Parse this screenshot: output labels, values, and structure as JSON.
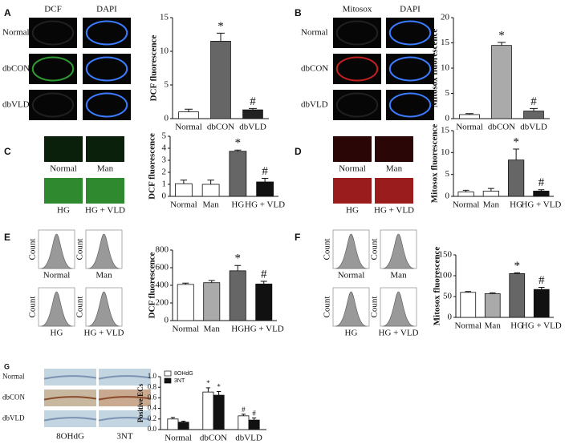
{
  "chart_data": [
    {
      "type": "bar",
      "panel": "A",
      "column_labels": [
        "DCF",
        "DAPI"
      ],
      "row_labels": [
        "Normal",
        "dbCON",
        "dbVLD"
      ],
      "y_label": "DCF fluorescence",
      "categories": [
        "Normal",
        "dbCON",
        "dbVLD"
      ],
      "values": [
        1.0,
        11.5,
        1.3
      ],
      "errors": [
        0.4,
        1.2,
        0.2
      ],
      "colors": [
        "#ffffff",
        "#666666",
        "#222222"
      ],
      "markers": [
        null,
        "*",
        "#"
      ],
      "ylim": [
        0,
        15
      ],
      "yticks": [
        0,
        5,
        10,
        15
      ]
    },
    {
      "type": "bar",
      "panel": "B",
      "column_labels": [
        "Mitosox",
        "DAPI"
      ],
      "row_labels": [
        "Normal",
        "dbCON",
        "dbVLD"
      ],
      "y_label": "Mitosox fluorescence",
      "categories": [
        "Normal",
        "dbCON",
        "dbVLD"
      ],
      "values": [
        0.8,
        14.5,
        1.5
      ],
      "errors": [
        0.2,
        0.6,
        0.5
      ],
      "colors": [
        "#ffffff",
        "#aaaaaa",
        "#666666"
      ],
      "markers": [
        null,
        "*",
        "#"
      ],
      "ylim": [
        0,
        20
      ],
      "yticks": [
        0,
        5,
        10,
        15,
        20
      ]
    },
    {
      "type": "bar",
      "panel": "C",
      "image_labels": [
        "Normal",
        "Man",
        "HG",
        "HG + VLD"
      ],
      "y_label": "DCF fluorescence",
      "categories": [
        "Normal",
        "Man",
        "HG",
        "HG + VLD"
      ],
      "values": [
        1.05,
        1.0,
        3.75,
        1.2
      ],
      "errors": [
        0.3,
        0.35,
        0.1,
        0.3
      ],
      "colors": [
        "#ffffff",
        "#ffffff",
        "#666666",
        "#111111"
      ],
      "markers": [
        null,
        null,
        "*",
        "#"
      ],
      "ylim": [
        0,
        5
      ],
      "yticks": [
        0,
        1,
        2,
        3,
        4,
        5
      ]
    },
    {
      "type": "bar",
      "panel": "D",
      "image_labels": [
        "Normal",
        "Man",
        "HG",
        "HG + VLD"
      ],
      "y_label": "Mitosox fluorescence",
      "categories": [
        "Normal",
        "Man",
        "HG",
        "HG + VLD"
      ],
      "values": [
        1.0,
        1.2,
        8.3,
        1.2
      ],
      "errors": [
        0.4,
        0.6,
        2.5,
        0.3
      ],
      "colors": [
        "#ffffff",
        "#ffffff",
        "#666666",
        "#111111"
      ],
      "markers": [
        null,
        null,
        "*",
        "#"
      ],
      "ylim": [
        0,
        15
      ],
      "yticks": [
        0,
        5,
        10,
        15
      ]
    },
    {
      "type": "bar",
      "panel": "E",
      "image_labels": [
        "Normal",
        "Man",
        "HG",
        "HG + VLD"
      ],
      "count_label": "Count",
      "y_label": "DCF fluorescence",
      "categories": [
        "Normal",
        "Man",
        "HG",
        "HG + VLD"
      ],
      "values": [
        410,
        430,
        565,
        415
      ],
      "errors": [
        15,
        25,
        60,
        30
      ],
      "colors": [
        "#ffffff",
        "#aaaaaa",
        "#666666",
        "#111111"
      ],
      "markers": [
        null,
        null,
        "*",
        "#"
      ],
      "ylim": [
        0,
        800
      ],
      "yticks": [
        0,
        200,
        400,
        600,
        800
      ]
    },
    {
      "type": "bar",
      "panel": "F",
      "image_labels": [
        "Normal",
        "Man",
        "HG",
        "HG + VLD"
      ],
      "count_label": "Count",
      "y_label": "Mitosox fluorescence",
      "categories": [
        "Normal",
        "Man",
        "HG",
        "HG + VLD"
      ],
      "values": [
        60,
        57,
        105,
        67
      ],
      "errors": [
        2,
        2,
        2,
        5
      ],
      "colors": [
        "#ffffff",
        "#aaaaaa",
        "#666666",
        "#111111"
      ],
      "markers": [
        null,
        null,
        "*",
        "#"
      ],
      "ylim": [
        0,
        150
      ],
      "yticks": [
        0,
        50,
        100,
        150
      ]
    },
    {
      "type": "grouped-bar",
      "panel": "G",
      "column_labels": [
        "8OHdG",
        "3NT"
      ],
      "row_labels": [
        "Normal",
        "dbCON",
        "dbVLD"
      ],
      "y_label": "Positive ECs",
      "categories": [
        "Normal",
        "dbCON",
        "dbVLD"
      ],
      "series": [
        {
          "name": "8OHdG",
          "color": "#ffffff",
          "values": [
            0.2,
            0.71,
            0.26
          ],
          "errors": [
            0.03,
            0.08,
            0.03
          ],
          "markers": [
            null,
            "*",
            "#"
          ]
        },
        {
          "name": "3NT",
          "color": "#111111",
          "values": [
            0.14,
            0.65,
            0.18
          ],
          "errors": [
            0.02,
            0.07,
            0.04
          ],
          "markers": [
            null,
            "*",
            "#"
          ]
        }
      ],
      "ylim": [
        0,
        1.0
      ],
      "yticks": [
        {
          "value": 0,
          "label": "0.0"
        },
        0.2,
        0.4,
        0.6,
        0.8,
        {
          "value": 1.0,
          "label": "1.0"
        }
      ],
      "legend": "upper left"
    }
  ]
}
